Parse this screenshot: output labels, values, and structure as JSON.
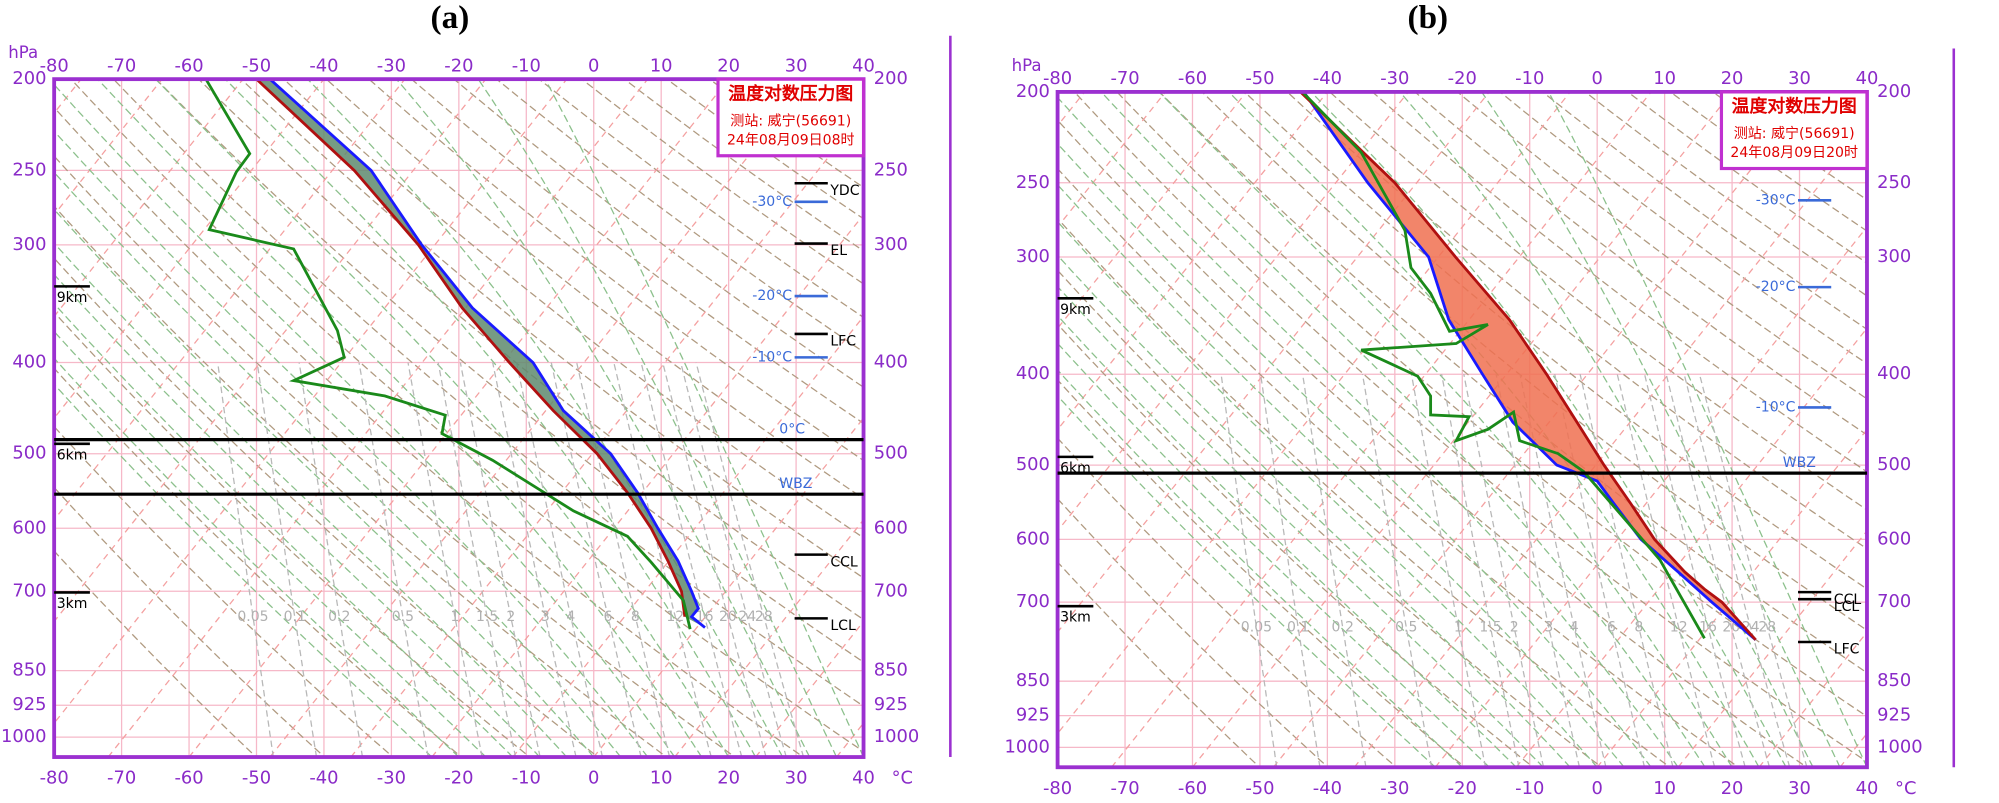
{
  "chart_data": [
    {
      "type": "line",
      "title": "(a)",
      "x_label": "°C",
      "y_label": "hPa",
      "xlim": [
        -80,
        40
      ],
      "xticks": [
        -80,
        -70,
        -60,
        -50,
        -40,
        -30,
        -20,
        -10,
        0,
        10,
        20,
        30,
        40
      ],
      "ylim": [
        1050,
        200
      ],
      "yticks": [
        200,
        250,
        300,
        400,
        500,
        600,
        700,
        850,
        925,
        1000
      ],
      "log_scale": true,
      "grid": true,
      "station_box": [
        "温度对数压力图",
        "测站: 威宁(56691)",
        "24年08月09日08时"
      ],
      "fill_color": "#5e8a6e",
      "series": [
        {
          "color": "#1a1aff",
          "x": [
            -48,
            -33,
            -25.5,
            -18,
            -9,
            -4.5,
            2.5,
            6.5,
            9.5,
            12.5,
            14.5,
            15.5,
            14.5,
            16.5
          ],
          "y": [
            200,
            250,
            300,
            350,
            400,
            450,
            500,
            550,
            600,
            650,
            700,
            730,
            745,
            765
          ]
        },
        {
          "color": "#b01010",
          "x": [
            -50,
            -35.5,
            -26,
            -19.5,
            -12.5,
            -6,
            0.5,
            5,
            8.5,
            11,
            13,
            13.5
          ],
          "y": [
            200,
            250,
            300,
            350,
            400,
            450,
            500,
            550,
            600,
            650,
            700,
            745
          ]
        },
        {
          "color": "#1a8a1a",
          "x": [
            -57.5,
            -51,
            -53,
            -57,
            -44.5,
            -38,
            -37,
            -44.5,
            -31,
            -22,
            -22.5,
            -15,
            -3,
            5,
            8.5,
            13.3,
            14.3
          ],
          "y": [
            200,
            240,
            251,
            289,
            303,
            370,
            395,
            418,
            434,
            455,
            476,
            508,
            575,
            612,
            652,
            716,
            768
          ]
        }
      ],
      "full_levels": [
        {
          "label": "0°C",
          "pressure": 483
        },
        {
          "label": "WBZ",
          "pressure": 552
        }
      ],
      "isotherm_levels": [
        {
          "label": "-30°C",
          "pressure": 270
        },
        {
          "label": "-20°C",
          "pressure": 340
        },
        {
          "label": "-10°C",
          "pressure": 395
        }
      ],
      "parcel_levels": [
        {
          "label": "YDC",
          "pressure": 258
        },
        {
          "label": "EL",
          "pressure": 299
        },
        {
          "label": "LFC",
          "pressure": 373
        },
        {
          "label": "CCL",
          "pressure": 640
        },
        {
          "label": "LCL",
          "pressure": 748
        }
      ],
      "height_levels": [
        {
          "label": "9km",
          "pressure": 332
        },
        {
          "label": "6km",
          "pressure": 488
        },
        {
          "label": "3km",
          "pressure": 702
        }
      ],
      "mixing_ratio_labels": [
        0.05,
        0.1,
        0.2,
        0.5,
        1,
        1.5,
        2,
        3,
        4,
        6,
        8,
        12,
        16,
        20,
        24,
        28
      ]
    },
    {
      "type": "line",
      "title": "(b)",
      "x_label": "°C",
      "y_label": "hPa",
      "xlim": [
        -80,
        40
      ],
      "xticks": [
        -80,
        -70,
        -60,
        -50,
        -40,
        -30,
        -20,
        -10,
        0,
        10,
        20,
        30,
        40
      ],
      "ylim": [
        1050,
        200
      ],
      "yticks": [
        200,
        250,
        300,
        400,
        500,
        600,
        700,
        850,
        925,
        1000
      ],
      "log_scale": true,
      "grid": true,
      "station_box": [
        "温度对数压力图",
        "测站: 威宁(56691)",
        "24年08月09日20时"
      ],
      "fill_color": "#f07050",
      "series": [
        {
          "color": "#1a1aff",
          "x": [
            -43.5,
            -34,
            -25,
            -22,
            -17,
            -12.5,
            -6,
            0,
            2.5,
            6.5,
            12,
            17,
            23.5
          ],
          "y": [
            200,
            250,
            300,
            350,
            400,
            450,
            500,
            520,
            550,
            600,
            650,
            700,
            768
          ]
        },
        {
          "color": "#b01010",
          "x": [
            -44,
            -30,
            -21,
            -13,
            -7.5,
            -3,
            1,
            5,
            8.5,
            13,
            16,
            18.5,
            23.5
          ],
          "y": [
            200,
            250,
            300,
            350,
            400,
            450,
            500,
            550,
            600,
            650,
            679,
            700,
            768
          ]
        },
        {
          "color": "#1a8a1a",
          "x": [
            -43.7,
            -35,
            -28.5,
            -27.6,
            -24.7,
            -21.9,
            -16.2,
            -20.9,
            -35,
            -26.6,
            -24.7,
            -24.7,
            -19,
            -20.9,
            -16.2,
            -12.4,
            -11.5,
            -5.8,
            -2,
            9.3,
            15.9
          ],
          "y": [
            200,
            232,
            281,
            308,
            328,
            360,
            354,
            371,
            377,
            402,
            422,
            442,
            444,
            471,
            458,
            439,
            471,
            486,
            508,
            631,
            765
          ]
        }
      ],
      "full_levels": [
        {
          "label": "WBZ",
          "pressure": 510
        }
      ],
      "isotherm_levels": [
        {
          "label": "-30°C",
          "pressure": 261
        },
        {
          "label": "-20°C",
          "pressure": 323
        },
        {
          "label": "-10°C",
          "pressure": 434
        }
      ],
      "parcel_levels": [
        {
          "label": "CCL",
          "pressure": 683
        },
        {
          "label": "LCL",
          "pressure": 695
        },
        {
          "label": "LFC",
          "pressure": 772
        }
      ],
      "height_levels": [
        {
          "label": "9km",
          "pressure": 332
        },
        {
          "label": "6km",
          "pressure": 490
        },
        {
          "label": "3km",
          "pressure": 707
        }
      ],
      "mixing_ratio_labels": [
        0.05,
        0.1,
        0.2,
        0.5,
        1,
        1.5,
        2,
        3,
        4,
        6,
        8,
        12,
        16,
        20,
        24,
        28
      ]
    }
  ]
}
